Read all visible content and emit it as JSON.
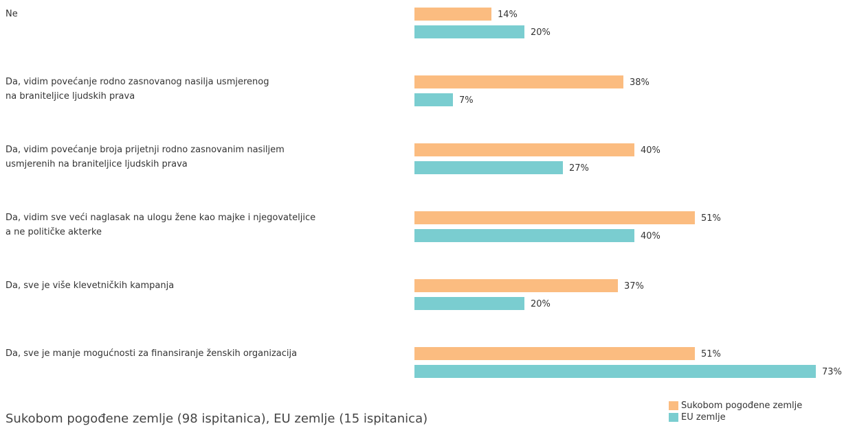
{
  "chart_data": {
    "type": "barh",
    "categories": [
      "Ne",
      "Da, vidim povećanje rodno zasnovanog nasilja usmjerenog\nna braniteljice ljudskih prava",
      "Da, vidim povećanje broja prijetnji rodno zasnovanim nasiljem\nusmjerenih na braniteljice ljudskih prava",
      "Da, vidim sve veći naglasak na ulogu žene kao majke i njegovateljice\na ne političke akterke",
      "Da, sve je više klevetničkih kampanja",
      "Da, sve je manje mogućnosti za finansiranje ženskih organizacija"
    ],
    "series": [
      {
        "name": "Sukobom pogođene zemlje",
        "color": "#fbbc80",
        "values": [
          14,
          38,
          40,
          51,
          37,
          51
        ],
        "value_labels": [
          "14%",
          "38%",
          "40%",
          "51%",
          "37%",
          "51%"
        ]
      },
      {
        "name": "EU zemlje",
        "color": "#7acdd0",
        "values": [
          20,
          7,
          27,
          40,
          20,
          73
        ],
        "value_labels": [
          "20%",
          "7%",
          "27%",
          "40%",
          "20%",
          "73%"
        ]
      }
    ],
    "subtitle": "Sukobom pogođene zemlje (98 ispitanica), EU zemlje (15 ispitanica)"
  }
}
